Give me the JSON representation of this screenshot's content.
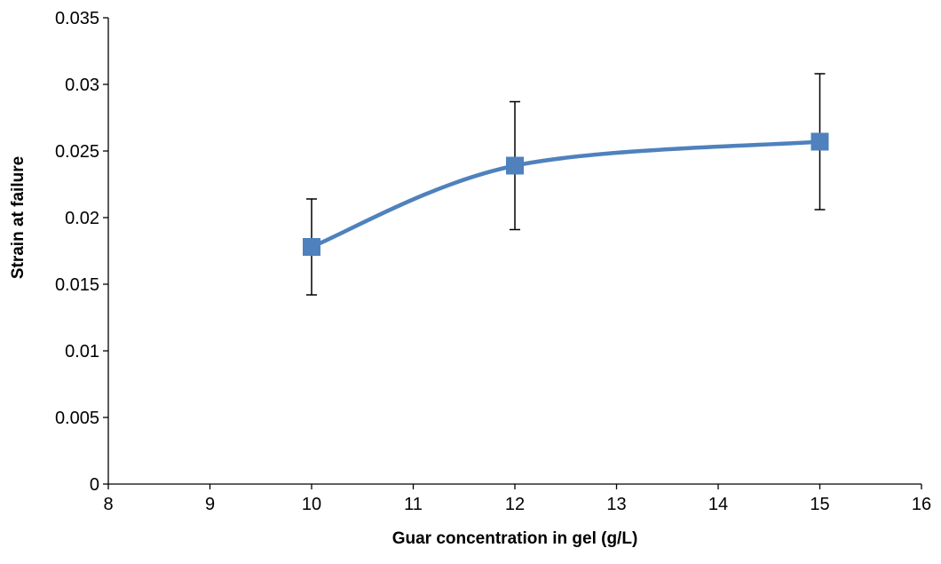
{
  "chart_data": {
    "type": "line",
    "title": "",
    "xlabel": "Guar concentration in gel (g/L)",
    "ylabel": "Strain at failure",
    "xlim": [
      8,
      16
    ],
    "ylim": [
      0,
      0.035
    ],
    "xticks": [
      "8",
      "9",
      "10",
      "11",
      "12",
      "13",
      "14",
      "15",
      "16"
    ],
    "yticks": [
      "0",
      "0.005",
      "0.01",
      "0.015",
      "0.02",
      "0.025",
      "0.03",
      "0.035"
    ],
    "grid": false,
    "legend": "none",
    "smooth": true,
    "marker": "square",
    "color": "#4F81BD",
    "series": [
      {
        "x": [
          10,
          12,
          15
        ],
        "y": [
          0.0178,
          0.0239,
          0.0257
        ],
        "err_low": [
          0.0036,
          0.0048,
          0.0051
        ],
        "err_high": [
          0.0036,
          0.0048,
          0.0051
        ]
      }
    ]
  }
}
